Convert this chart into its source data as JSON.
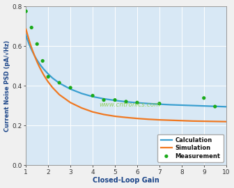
{
  "title": "",
  "xlabel": "Closed-Loop Gain",
  "ylabel": "Current Noise PSD (pA/√Hz)",
  "xlim": [
    1,
    10
  ],
  "ylim": [
    0,
    0.8
  ],
  "yticks": [
    0,
    0.2,
    0.4,
    0.6,
    0.8
  ],
  "xticks": [
    1,
    2,
    3,
    4,
    5,
    6,
    7,
    8,
    9,
    10
  ],
  "bg_color": "#d8e8f5",
  "fig_color": "#f0f0f0",
  "calc_color": "#3a9fd0",
  "sim_color": "#f07820",
  "meas_color": "#1aaa1a",
  "calc_x": [
    1.0,
    1.05,
    1.1,
    1.15,
    1.2,
    1.3,
    1.4,
    1.5,
    1.6,
    1.7,
    1.8,
    1.9,
    2.0,
    2.2,
    2.5,
    3.0,
    3.5,
    4.0,
    4.5,
    5.0,
    5.5,
    6.0,
    6.5,
    7.0,
    7.5,
    8.0,
    8.5,
    9.0,
    9.5,
    10.0
  ],
  "calc_y": [
    0.655,
    0.638,
    0.622,
    0.607,
    0.594,
    0.57,
    0.548,
    0.529,
    0.512,
    0.497,
    0.483,
    0.471,
    0.459,
    0.438,
    0.413,
    0.383,
    0.361,
    0.345,
    0.334,
    0.326,
    0.319,
    0.314,
    0.31,
    0.307,
    0.304,
    0.302,
    0.3,
    0.298,
    0.296,
    0.294
  ],
  "sim_x": [
    1.0,
    1.05,
    1.1,
    1.15,
    1.2,
    1.3,
    1.4,
    1.5,
    1.6,
    1.7,
    1.8,
    1.9,
    2.0,
    2.2,
    2.5,
    3.0,
    3.5,
    4.0,
    4.5,
    5.0,
    5.5,
    6.0,
    6.5,
    7.0,
    7.5,
    8.0,
    8.5,
    9.0,
    9.5,
    10.0
  ],
  "sim_y": [
    0.685,
    0.665,
    0.645,
    0.626,
    0.608,
    0.576,
    0.547,
    0.52,
    0.496,
    0.474,
    0.454,
    0.436,
    0.419,
    0.39,
    0.355,
    0.315,
    0.288,
    0.268,
    0.255,
    0.246,
    0.24,
    0.235,
    0.231,
    0.228,
    0.226,
    0.224,
    0.222,
    0.221,
    0.22,
    0.219
  ],
  "meas_x": [
    1.0,
    1.25,
    1.5,
    1.75,
    2.0,
    2.5,
    3.0,
    4.0,
    4.5,
    5.0,
    5.5,
    6.0,
    7.0,
    9.0,
    9.5
  ],
  "meas_y": [
    0.775,
    0.693,
    0.61,
    0.525,
    0.445,
    0.415,
    0.39,
    0.35,
    0.328,
    0.328,
    0.32,
    0.315,
    0.31,
    0.338,
    0.295
  ],
  "watermark": "www.cntronics.com",
  "watermark_color": "#88cc44",
  "legend_labels": [
    "Calculation",
    "Simulation",
    "Measurement"
  ]
}
